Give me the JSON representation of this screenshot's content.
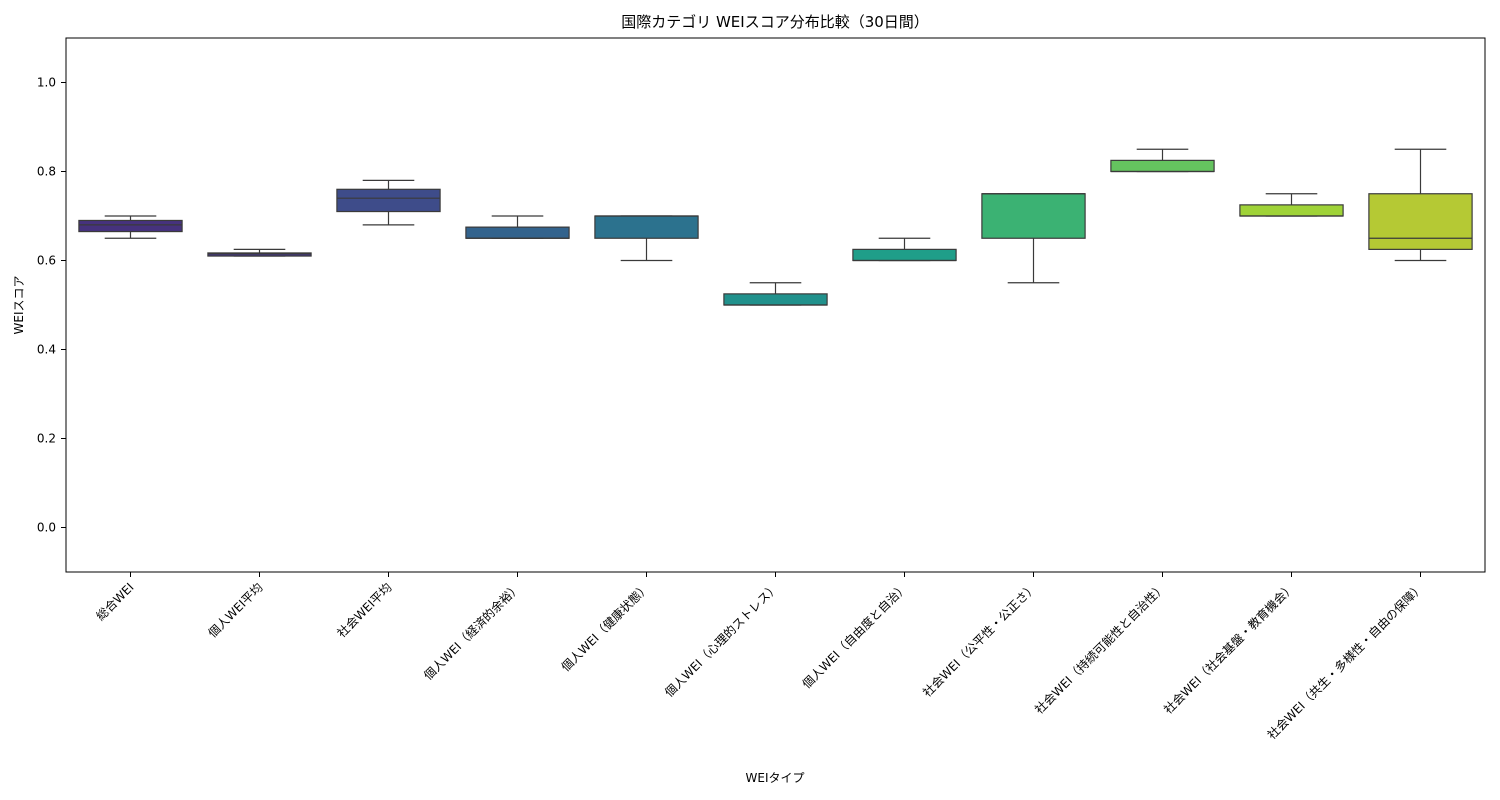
{
  "chart_data": {
    "type": "box",
    "title": "国際カテゴリ WEIスコア分布比較（30日間）",
    "xlabel": "WEIタイプ",
    "ylabel": "WEIスコア",
    "ylim": [
      -0.1,
      1.1
    ],
    "yticks": [
      "0.0",
      "0.2",
      "0.4",
      "0.6",
      "0.8",
      "1.0"
    ],
    "grid": false,
    "legend": "none",
    "categories": [
      "総合WEI",
      "個人WEI平均",
      "社会WEI平均",
      "個人WEI（経済的余裕）",
      "個人WEI（健康状態）",
      "個人WEI（心理的ストレス）",
      "個人WEI（自由度と自治）",
      "社会WEI（公平性・公正さ）",
      "社会WEI（持続可能性と自治性）",
      "社会WEI（社会基盤・教育機会）",
      "社会WEI（共生・多様性・自由の保障）"
    ],
    "boxes": [
      {
        "whisker_low": 0.65,
        "q1": 0.665,
        "median": 0.68,
        "q3": 0.69,
        "whisker_high": 0.7,
        "color": "#46327e"
      },
      {
        "whisker_low": 0.61,
        "q1": 0.61,
        "median": 0.615,
        "q3": 0.617,
        "whisker_high": 0.625,
        "color": "#453781"
      },
      {
        "whisker_low": 0.68,
        "q1": 0.71,
        "median": 0.74,
        "q3": 0.76,
        "whisker_high": 0.78,
        "color": "#3e4c8a"
      },
      {
        "whisker_low": 0.65,
        "q1": 0.65,
        "median": 0.65,
        "q3": 0.675,
        "whisker_high": 0.7,
        "color": "#33638d"
      },
      {
        "whisker_low": 0.6,
        "q1": 0.65,
        "median": 0.7,
        "q3": 0.7,
        "whisker_high": 0.7,
        "color": "#2c728e"
      },
      {
        "whisker_low": 0.5,
        "q1": 0.5,
        "median": 0.5,
        "q3": 0.525,
        "whisker_high": 0.55,
        "color": "#21918c"
      },
      {
        "whisker_low": 0.6,
        "q1": 0.6,
        "median": 0.6,
        "q3": 0.625,
        "whisker_high": 0.65,
        "color": "#1f9e89"
      },
      {
        "whisker_low": 0.55,
        "q1": 0.65,
        "median": 0.75,
        "q3": 0.75,
        "whisker_high": 0.75,
        "color": "#3bb273"
      },
      {
        "whisker_low": 0.8,
        "q1": 0.8,
        "median": 0.8,
        "q3": 0.825,
        "whisker_high": 0.85,
        "color": "#65c35f"
      },
      {
        "whisker_low": 0.7,
        "q1": 0.7,
        "median": 0.7,
        "q3": 0.725,
        "whisker_high": 0.75,
        "color": "#9fd338"
      },
      {
        "whisker_low": 0.6,
        "q1": 0.625,
        "median": 0.65,
        "q3": 0.75,
        "whisker_high": 0.85,
        "color": "#b5c934"
      }
    ]
  }
}
